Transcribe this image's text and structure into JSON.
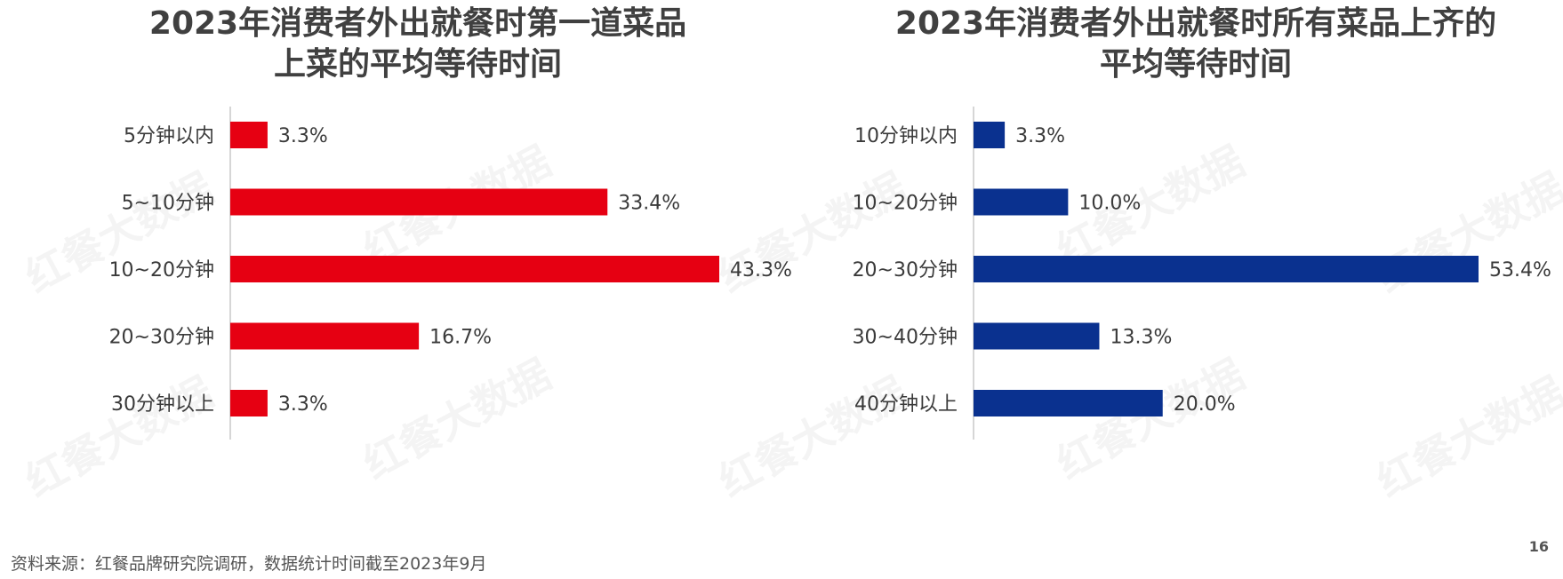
{
  "chart_data": [
    {
      "type": "bar",
      "orientation": "horizontal",
      "title": "2023年消费者外出就餐时第一道菜品\n上菜的平均等待时间",
      "categories": [
        "5分钟以内",
        "5~10分钟",
        "10~20分钟",
        "20~30分钟",
        "30分钟以上"
      ],
      "values": [
        3.3,
        33.4,
        43.3,
        16.7,
        3.3
      ],
      "value_labels": [
        "3.3%",
        "33.4%",
        "43.3%",
        "16.7%",
        "3.3%"
      ],
      "xlim": [
        0,
        43.3
      ],
      "color": "#E60012",
      "grid": false,
      "legend": "none"
    },
    {
      "type": "bar",
      "orientation": "horizontal",
      "title": "2023年消费者外出就餐时所有菜品上齐的\n平均等待时间",
      "categories": [
        "10分钟以内",
        "10~20分钟",
        "20~30分钟",
        "30~40分钟",
        "40分钟以上"
      ],
      "values": [
        3.3,
        10.0,
        53.4,
        13.3,
        20.0
      ],
      "value_labels": [
        "3.3%",
        "10.0%",
        "53.4%",
        "13.3%",
        "20.0%"
      ],
      "xlim": [
        0,
        53.4
      ],
      "color": "#0A318F",
      "grid": false,
      "legend": "none"
    }
  ],
  "footer": {
    "source": "资料来源：红餐品牌研究院调研，数据统计时间截至2023年9月",
    "page_number": "16"
  },
  "watermark": {
    "text": "红餐大数据"
  }
}
